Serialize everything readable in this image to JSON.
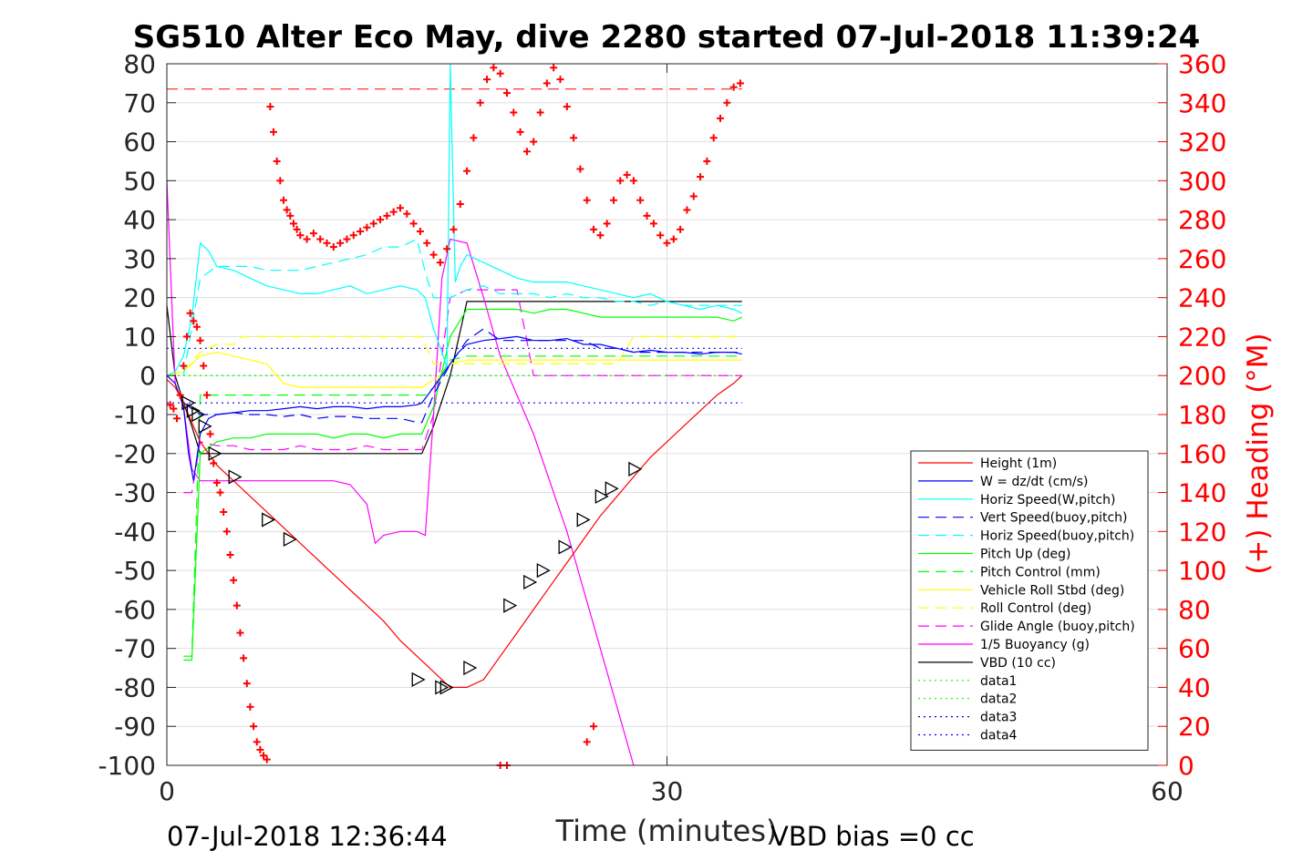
{
  "chart_data": {
    "type": "line",
    "title": "SG510 Alter Eco May, dive 2280 started 07-Jul-2018 11:39:24",
    "xlabel": "Time (minutes)",
    "ylabel_right": "(+) Heading (°M)",
    "footer_left": "07-Jul-2018 12:36:44",
    "footer_right": "VBD bias =0 cc",
    "xlim": [
      0,
      60
    ],
    "ylim": [
      -100,
      80
    ],
    "ylim_right": [
      0,
      360
    ],
    "x_ticks": [
      "0",
      "30",
      "60"
    ],
    "y_ticks": [
      "80",
      "70",
      "60",
      "50",
      "40",
      "30",
      "20",
      "10",
      "0",
      "-10",
      "-20",
      "-30",
      "-40",
      "-50",
      "-60",
      "-70",
      "-80",
      "-90",
      "-100"
    ],
    "y_ticks_right": [
      "360",
      "340",
      "320",
      "300",
      "280",
      "260",
      "240",
      "220",
      "200",
      "180",
      "160",
      "140",
      "120",
      "100",
      "80",
      "60",
      "40",
      "20",
      "0"
    ],
    "grid": true,
    "legend_position": "bottom-right",
    "series": [
      {
        "name": "Height (1m)",
        "color": "#ff0000",
        "style": "solid",
        "x": [
          0,
          0.5,
          1,
          1.5,
          2,
          3,
          4,
          5,
          6,
          7,
          8,
          9,
          10,
          11,
          12,
          13,
          14,
          15,
          16,
          17,
          18,
          19,
          20,
          21,
          22,
          23,
          24,
          25,
          26,
          27,
          28,
          29,
          30,
          31,
          32,
          33,
          34,
          34.5
        ],
        "y": [
          -1,
          -3,
          -7,
          -12,
          -17,
          -23,
          -27,
          -31,
          -35,
          -39,
          -43,
          -47,
          -51,
          -55,
          -59,
          -63,
          -68,
          -72,
          -76,
          -80,
          -80,
          -78,
          -72,
          -66,
          -60,
          -54,
          -48,
          -42,
          -36,
          -31,
          -26,
          -21,
          -17,
          -13,
          -9,
          -5,
          -2,
          0
        ]
      },
      {
        "name": "W = dz/dt (cm/s)",
        "color": "#0000ff",
        "style": "solid",
        "x": [
          0,
          0.5,
          1,
          1.3,
          1.6,
          2,
          2.5,
          3,
          4,
          5,
          6,
          7,
          8,
          9,
          10,
          11,
          12,
          13,
          14,
          15,
          15.3,
          16,
          16.5,
          17,
          17.5,
          18,
          19,
          20,
          21,
          22,
          23,
          24,
          25,
          26,
          27,
          28,
          29,
          30,
          31,
          32,
          33,
          34,
          34.5
        ],
        "y": [
          0,
          -2,
          -8,
          -20,
          -27,
          -15,
          -11,
          -10,
          -9.5,
          -9,
          -9,
          -8.5,
          -8,
          -8.5,
          -8,
          -8,
          -8.5,
          -8,
          -8,
          -7.5,
          -7,
          -3,
          0,
          3,
          6,
          8,
          9,
          9.5,
          10,
          9,
          9,
          9.5,
          8,
          8,
          7,
          6,
          6.5,
          6,
          6,
          5.5,
          6,
          6,
          5.5
        ]
      },
      {
        "name": "Horiz Speed(W,pitch)",
        "color": "#00ffff",
        "style": "solid",
        "x": [
          0,
          0.5,
          1,
          1.5,
          2,
          2.5,
          3,
          4,
          5,
          6,
          7,
          8,
          9,
          10,
          11,
          12,
          13,
          14,
          15,
          15.5,
          16,
          16.5,
          16.8,
          17,
          17.3,
          17.6,
          18,
          19,
          20,
          21,
          22,
          23,
          24,
          25,
          26,
          27,
          28,
          29,
          30,
          31,
          32,
          33,
          34,
          34.5
        ],
        "y": [
          0,
          1,
          5,
          15,
          34,
          32,
          28,
          27,
          25,
          23,
          22,
          21,
          21,
          22,
          23,
          21,
          22,
          23,
          22,
          20,
          12,
          6,
          2,
          80,
          24,
          28,
          31,
          29,
          27,
          25,
          24,
          24,
          24,
          23,
          22,
          21,
          20,
          21,
          19,
          18,
          17,
          18,
          17,
          16
        ]
      },
      {
        "name": "Vert Speed(buoy,pitch)",
        "color": "#0000ff",
        "style": "dashed",
        "x": [
          1,
          2,
          3,
          4,
          5,
          6,
          7,
          8,
          9,
          10,
          11,
          12,
          13,
          14,
          15,
          15.3,
          16,
          17,
          18,
          19,
          20,
          21,
          22,
          23,
          24,
          25,
          26,
          27,
          28,
          29,
          30,
          31,
          32,
          33,
          34,
          34.5
        ],
        "y": [
          -7,
          -10,
          -10,
          -9.5,
          -10,
          -10,
          -10.5,
          -10,
          -11,
          -10.5,
          -10.5,
          -11,
          -11,
          -11,
          -12,
          -12,
          -5,
          3,
          9,
          12,
          9,
          9,
          9,
          9,
          9,
          9,
          7,
          7,
          6,
          6,
          6,
          6,
          6,
          6,
          6,
          6
        ]
      },
      {
        "name": "Horiz Speed(buoy,pitch)",
        "color": "#00ffff",
        "style": "dashed",
        "x": [
          1,
          2,
          3,
          4,
          5,
          6,
          7,
          8,
          9,
          10,
          11,
          12,
          13,
          14,
          15,
          15.3,
          15.6,
          16,
          17,
          18,
          19,
          20,
          21,
          22,
          23,
          24,
          25,
          26,
          27,
          28,
          29,
          30,
          31,
          32,
          33,
          34,
          34.5
        ],
        "y": [
          0,
          25,
          28,
          28,
          28,
          27,
          27,
          27,
          28,
          29,
          30,
          31,
          33,
          33,
          35,
          30,
          25,
          20,
          20,
          22,
          23,
          21,
          21,
          21,
          20,
          21,
          20,
          20,
          19,
          19,
          18,
          19,
          18,
          18,
          18,
          18,
          18
        ]
      },
      {
        "name": "Pitch Up (deg)",
        "color": "#00ff00",
        "style": "solid",
        "x": [
          1,
          1.5,
          2,
          3,
          4,
          5,
          6,
          7,
          8,
          9,
          10,
          11,
          12,
          13,
          14,
          15,
          15.3,
          16,
          17,
          18,
          19,
          20,
          21,
          22,
          23,
          24,
          25,
          26,
          27,
          28,
          29,
          30,
          31,
          32,
          33,
          34,
          34.5
        ],
        "y": [
          -73,
          -73,
          -20,
          -17,
          -16,
          -16,
          -15,
          -15,
          -15,
          -15,
          -16,
          -15,
          -15,
          -16,
          -15,
          -15,
          -15,
          -8,
          10,
          17,
          17,
          17,
          17,
          16,
          17,
          17,
          16,
          15,
          15,
          15,
          15,
          15,
          15,
          15,
          15,
          14,
          15
        ]
      },
      {
        "name": "Pitch Control (mm)",
        "color": "#00ff00",
        "style": "dashed",
        "x": [
          1,
          1.5,
          2,
          3,
          4,
          5,
          6,
          10,
          15,
          15.5,
          16,
          17,
          18,
          20,
          25,
          30,
          34.5
        ],
        "y": [
          -72,
          -72,
          -5,
          -5,
          -5,
          -5,
          -5,
          -5,
          -5,
          -5,
          -3,
          4,
          5,
          5,
          5,
          5,
          5
        ]
      },
      {
        "name": "Vehicle Roll Stbd (deg)",
        "color": "#ffff00",
        "style": "solid",
        "x": [
          0,
          1,
          1.5,
          2,
          3,
          4,
          5,
          6,
          7,
          8,
          9,
          10,
          11,
          12,
          13,
          14,
          15,
          15.3,
          16,
          16.5,
          17,
          18,
          19,
          20,
          21,
          22,
          23,
          24,
          25,
          26,
          27,
          28,
          29,
          30,
          31,
          32,
          33,
          34,
          34.5
        ],
        "y": [
          0,
          1,
          3,
          5,
          6,
          5,
          4,
          3,
          -2,
          -3,
          -3,
          -3,
          -3,
          -3,
          -3,
          -3,
          -3,
          -3,
          -1,
          0,
          3,
          4,
          4,
          4,
          4,
          4,
          4,
          4,
          4,
          4,
          4,
          4,
          4,
          4,
          4,
          4,
          4,
          4,
          4
        ]
      },
      {
        "name": "Roll Control (deg)",
        "color": "#ffff00",
        "style": "dashed",
        "x": [
          0,
          1,
          2,
          3,
          4,
          4.5,
          5,
          6,
          7,
          10,
          15,
          15.3,
          16,
          17,
          18,
          20,
          21,
          22,
          23,
          24,
          25,
          26,
          27,
          28,
          29,
          30,
          31,
          32,
          33,
          34,
          34.5
        ],
        "y": [
          0,
          1,
          6,
          8,
          8,
          10,
          10,
          10,
          10,
          10,
          10,
          10,
          3,
          3,
          3,
          3,
          3,
          3,
          3,
          3,
          3,
          3,
          3,
          10,
          10,
          10,
          10,
          10,
          10,
          10,
          10
        ]
      },
      {
        "name": "Glide Angle (buoy,pitch)",
        "color": "#ff00ff",
        "style": "dashed",
        "x": [
          1,
          1.5,
          2,
          3,
          4,
          5,
          6,
          7,
          8,
          9,
          10,
          11,
          12,
          13,
          14,
          15,
          15.3,
          16,
          17,
          18,
          19,
          20,
          21,
          22,
          23,
          24,
          25,
          26,
          27,
          28,
          29,
          30,
          31,
          32,
          33,
          34,
          34.5
        ],
        "y": [
          -30,
          -30,
          -17,
          -18,
          -18,
          -19,
          -19,
          -19,
          -18,
          -19,
          -19,
          -19,
          -18,
          -19,
          -19,
          -19,
          -19,
          -10,
          20,
          22,
          22,
          22,
          22,
          0,
          0,
          0,
          0,
          0,
          0,
          0,
          0,
          0,
          0,
          0,
          0,
          0,
          0
        ]
      },
      {
        "name": "1/5 Buoyancy (g)",
        "color": "#ff00ff",
        "style": "solid",
        "x": [
          0,
          0.5,
          1,
          1.5,
          2,
          3,
          5,
          8,
          10,
          11,
          12,
          12.5,
          13,
          14,
          15,
          15.5,
          16,
          16.5,
          17,
          18,
          19,
          20,
          22,
          24,
          26,
          28
        ],
        "y": [
          50,
          -2,
          -8,
          -24,
          -27,
          -27,
          -27,
          -27,
          -27,
          -28,
          -33,
          -43,
          -41,
          -40,
          -40,
          -41,
          -10,
          25,
          35,
          34,
          20,
          5,
          -15,
          -40,
          -70,
          -100
        ]
      },
      {
        "name": "VBD (10 cc)",
        "color": "#000000",
        "style": "solid",
        "x": [
          0,
          0.5,
          1,
          1.5,
          2,
          3,
          5,
          10,
          15,
          15.3,
          16,
          17,
          18,
          20,
          25,
          30,
          34.5
        ],
        "y": [
          18,
          0,
          -7,
          -13,
          -20,
          -20,
          -20,
          -20,
          -20,
          -20,
          -13,
          0,
          19,
          19,
          19,
          19,
          19
        ]
      },
      {
        "name": "data1",
        "color": "#00ff00",
        "style": "dotted",
        "x": [
          0,
          34.5
        ],
        "y": [
          0,
          0
        ]
      },
      {
        "name": "data2",
        "color": "#00ff00",
        "style": "dotted",
        "x": [
          0,
          34.5
        ],
        "y": [
          0,
          0
        ]
      },
      {
        "name": "data3",
        "color": "#0000ff",
        "style": "dotted",
        "x": [
          0,
          34.5
        ],
        "y": [
          7,
          7
        ]
      },
      {
        "name": "data4",
        "color": "#0000ff",
        "style": "dotted",
        "x": [
          0,
          34.5
        ],
        "y": [
          -7,
          -7
        ]
      }
    ],
    "reference_lines_right": [
      {
        "y": 347,
        "color": "#ff0000",
        "style": "dashed",
        "x": [
          0,
          34.5
        ]
      }
    ],
    "heading_points": {
      "color": "#ff0000",
      "marker": "+",
      "x": [
        0.2,
        0.4,
        0.6,
        0.8,
        1.0,
        1.2,
        1.4,
        1.6,
        1.8,
        2.0,
        2.2,
        2.4,
        2.6,
        2.8,
        3.0,
        3.2,
        3.4,
        3.6,
        3.8,
        4.0,
        4.2,
        4.4,
        4.6,
        4.8,
        5.0,
        5.2,
        5.4,
        5.6,
        5.8,
        6.0,
        6.2,
        6.4,
        6.6,
        6.8,
        7.0,
        7.2,
        7.4,
        7.6,
        7.8,
        8.0,
        8.4,
        8.8,
        9.2,
        9.6,
        10.0,
        10.4,
        10.8,
        11.2,
        11.6,
        12.0,
        12.4,
        12.8,
        13.2,
        13.6,
        14.0,
        14.4,
        14.8,
        15.2,
        15.6,
        16.0,
        16.4,
        16.8,
        17.2,
        17.6,
        18.0,
        18.4,
        18.8,
        19.2,
        19.6,
        20.0,
        20.4,
        20.8,
        21.2,
        21.6,
        22.0,
        22.4,
        22.8,
        23.2,
        23.6,
        24.0,
        24.4,
        24.8,
        25.2,
        25.6,
        26.0,
        26.4,
        26.8,
        27.2,
        27.6,
        28.0,
        28.4,
        28.8,
        29.2,
        29.6,
        30.0,
        30.4,
        30.8,
        31.2,
        31.6,
        32.0,
        32.4,
        32.8,
        33.2,
        33.6,
        34.0,
        34.4,
        20.0,
        20.4,
        25.2,
        25.6
      ],
      "y": [
        185,
        183,
        178,
        190,
        205,
        220,
        232,
        228,
        225,
        218,
        205,
        190,
        170,
        155,
        145,
        140,
        130,
        120,
        108,
        95,
        82,
        68,
        55,
        42,
        30,
        20,
        12,
        8,
        5,
        3,
        338,
        325,
        310,
        300,
        290,
        285,
        282,
        278,
        275,
        272,
        270,
        273,
        270,
        268,
        266,
        268,
        270,
        272,
        274,
        276,
        278,
        280,
        282,
        284,
        286,
        283,
        278,
        274,
        268,
        262,
        258,
        265,
        275,
        288,
        305,
        322,
        340,
        352,
        358,
        355,
        345,
        335,
        325,
        315,
        320,
        335,
        350,
        358,
        352,
        338,
        322,
        306,
        290,
        275,
        272,
        278,
        290,
        300,
        303,
        300,
        290,
        282,
        278,
        272,
        268,
        270,
        275,
        285,
        292,
        302,
        310,
        322,
        332,
        340,
        348,
        350,
        0,
        0,
        12,
        20
      ]
    },
    "depth_markers": {
      "marker": "triangle-right",
      "x": [
        1.2,
        1.5,
        1.8,
        2.2,
        2.8,
        4.0,
        6.0,
        7.3,
        15.0,
        16.4,
        16.7,
        18.1,
        20.5,
        21.7,
        22.5,
        23.8,
        24.9,
        26.0,
        26.6,
        28.0
      ],
      "y": [
        -7,
        -9,
        -10,
        -13,
        -20,
        -26,
        -37,
        -42,
        -78,
        -80,
        -80,
        -75,
        -59,
        -53,
        -50,
        -44,
        -37,
        -31,
        -29,
        -24
      ]
    }
  }
}
